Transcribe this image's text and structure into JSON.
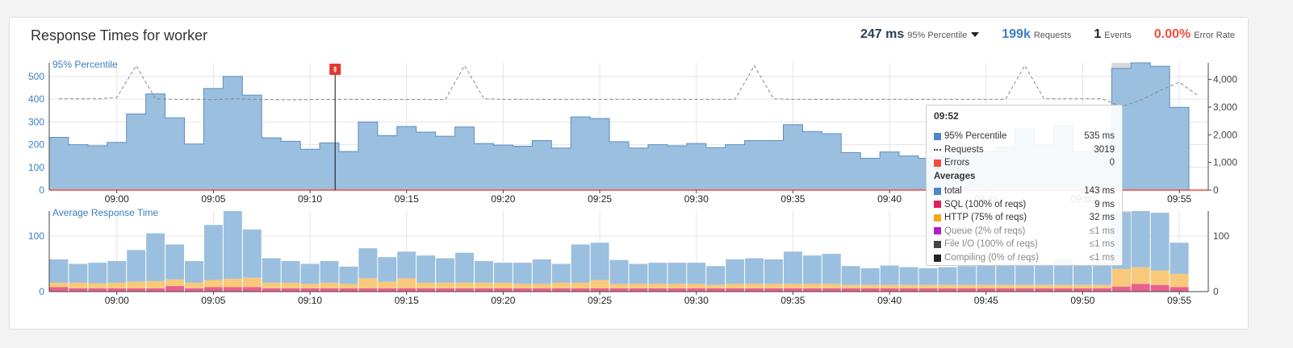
{
  "title": "Response Times for worker",
  "stats": {
    "percentile_value": "247 ms",
    "percentile_label": "95% Percentile",
    "requests_value": "199k",
    "requests_label": "Requests",
    "events_value": "1",
    "events_label": "Events",
    "error_value": "0.00%",
    "error_label": "Error Rate"
  },
  "colors": {
    "percentile": "#3a7fc1",
    "requests": "#3a7fc1",
    "error": "#f04e3e",
    "bar_fill": "#9bbfdf",
    "bar_stroke": "#5b8fc4",
    "sql": "#e8608e",
    "http": "#f8c97a",
    "queue": "#b94fc7",
    "fileio": "#444444",
    "compiling": "#222222"
  },
  "tooltip": {
    "time": "09:52",
    "rows": [
      {
        "name": "95% Percentile",
        "value": "535 ms",
        "color": "#4b86c5",
        "kind": "swatch"
      },
      {
        "name": "Requests",
        "value": "3019",
        "color": "#444444",
        "kind": "dash"
      },
      {
        "name": "Errors",
        "value": "0",
        "color": "#f04e3e",
        "kind": "swatch"
      }
    ],
    "averages_label": "Averages",
    "averages": [
      {
        "name": "total",
        "value": "143 ms",
        "color": "#4b86c5",
        "dim": false
      },
      {
        "name": "SQL (100% of reqs)",
        "value": "9 ms",
        "color": "#e01e5a",
        "dim": false
      },
      {
        "name": "HTTP (75% of reqs)",
        "value": "32 ms",
        "color": "#f5a623",
        "dim": false
      },
      {
        "name": "Queue (2% of reqs)",
        "value": "≤1 ms",
        "color": "#b01ec7",
        "dim": true
      },
      {
        "name": "File I/O (100% of reqs)",
        "value": "≤1 ms",
        "color": "#444444",
        "dim": true
      },
      {
        "name": "Compiling (0% of reqs)",
        "value": "≤1 ms",
        "color": "#222222",
        "dim": true
      }
    ]
  },
  "deploy_marker": {
    "label": "⇞",
    "time": "09:11"
  },
  "chart_data": [
    {
      "type": "bar",
      "series_label": "95% Percentile",
      "categories": [
        "08:57",
        "08:58",
        "08:59",
        "09:00",
        "09:01",
        "09:02",
        "09:03",
        "09:04",
        "09:05",
        "09:06",
        "09:07",
        "09:08",
        "09:09",
        "09:10",
        "09:11",
        "09:12",
        "09:13",
        "09:14",
        "09:15",
        "09:16",
        "09:17",
        "09:18",
        "09:19",
        "09:20",
        "09:21",
        "09:22",
        "09:23",
        "09:24",
        "09:25",
        "09:26",
        "09:27",
        "09:28",
        "09:29",
        "09:30",
        "09:31",
        "09:32",
        "09:33",
        "09:34",
        "09:35",
        "09:36",
        "09:37",
        "09:38",
        "09:39",
        "09:40",
        "09:41",
        "09:42",
        "09:43",
        "09:44",
        "09:45",
        "09:46",
        "09:47",
        "09:48",
        "09:49",
        "09:50",
        "09:51",
        "09:52",
        "09:53",
        "09:54",
        "09:55",
        "09:56"
      ],
      "series": [
        {
          "name": "95% Percentile",
          "axis": "left",
          "values": [
            232,
            200,
            195,
            210,
            335,
            423,
            318,
            203,
            447,
            500,
            418,
            230,
            215,
            180,
            208,
            170,
            300,
            240,
            280,
            255,
            237,
            278,
            205,
            198,
            193,
            218,
            185,
            322,
            315,
            213,
            185,
            200,
            195,
            205,
            187,
            200,
            218,
            218,
            288,
            258,
            248,
            165,
            140,
            168,
            150,
            140,
            150,
            165,
            170,
            190,
            270,
            200,
            285,
            170,
            190,
            535,
            560,
            545,
            364,
            0
          ]
        },
        {
          "name": "Requests",
          "axis": "right",
          "values": [
            3300,
            3300,
            3300,
            3350,
            4500,
            3300,
            3280,
            3280,
            3270,
            3300,
            3280,
            3270,
            3260,
            3270,
            3280,
            3280,
            3280,
            3270,
            3270,
            3270,
            3270,
            4500,
            3300,
            3280,
            3280,
            3280,
            3280,
            3280,
            3280,
            3280,
            3280,
            3280,
            3280,
            3280,
            3280,
            3280,
            4500,
            3300,
            3280,
            3280,
            3280,
            3280,
            3280,
            3280,
            3280,
            3280,
            3280,
            3280,
            3280,
            3280,
            4500,
            3300,
            3300,
            3300,
            3300,
            3019,
            3250,
            3600,
            3900,
            3400
          ]
        }
      ],
      "ylim_left": [
        0,
        560
      ],
      "y_ticks_left": [
        0,
        100,
        200,
        300,
        400,
        500
      ],
      "ylim_right": [
        0,
        4600
      ],
      "y_ticks_right": [
        "0",
        "1,000",
        "2,000",
        "3,000",
        "4,000"
      ],
      "x_ticks": [
        "09:00",
        "09:05",
        "09:10",
        "09:15",
        "09:20",
        "09:25",
        "09:30",
        "09:35",
        "09:40",
        "09:45",
        "09:50",
        "09:55"
      ]
    },
    {
      "type": "bar",
      "series_label": "Average Response Time",
      "stacked": true,
      "categories_ref": "same as first chart",
      "series": [
        {
          "name": "total",
          "values": [
            58,
            50,
            52,
            55,
            75,
            105,
            85,
            55,
            120,
            145,
            112,
            60,
            55,
            50,
            55,
            45,
            78,
            62,
            72,
            65,
            60,
            70,
            55,
            52,
            52,
            58,
            50,
            85,
            88,
            57,
            50,
            52,
            52,
            52,
            46,
            58,
            60,
            58,
            72,
            65,
            68,
            46,
            42,
            47,
            44,
            42,
            44,
            46,
            48,
            52,
            58,
            50,
            60,
            48,
            52,
            143,
            145,
            142,
            88,
            0
          ]
        },
        {
          "name": "SQL",
          "values": [
            8,
            6,
            6,
            6,
            6,
            6,
            10,
            6,
            8,
            8,
            8,
            6,
            6,
            6,
            6,
            6,
            6,
            6,
            6,
            6,
            6,
            6,
            6,
            6,
            6,
            6,
            6,
            6,
            6,
            6,
            6,
            6,
            6,
            6,
            6,
            6,
            6,
            6,
            6,
            6,
            6,
            6,
            6,
            6,
            6,
            6,
            6,
            6,
            6,
            6,
            6,
            6,
            6,
            6,
            6,
            9,
            14,
            12,
            8,
            0
          ]
        },
        {
          "name": "HTTP",
          "values": [
            8,
            10,
            9,
            10,
            12,
            13,
            12,
            10,
            13,
            15,
            17,
            10,
            10,
            8,
            10,
            8,
            18,
            12,
            18,
            10,
            10,
            10,
            10,
            10,
            8,
            8,
            10,
            10,
            15,
            8,
            8,
            8,
            8,
            8,
            6,
            8,
            8,
            8,
            8,
            8,
            8,
            6,
            6,
            6,
            6,
            6,
            6,
            6,
            6,
            6,
            6,
            6,
            6,
            6,
            6,
            32,
            30,
            26,
            24,
            0
          ]
        }
      ],
      "ylim": [
        0,
        145
      ],
      "y_ticks": [
        0,
        100
      ],
      "x_ticks": [
        "09:00",
        "09:05",
        "09:10",
        "09:15",
        "09:20",
        "09:25",
        "09:30",
        "09:35",
        "09:40",
        "09:45",
        "09:50",
        "09:55"
      ]
    }
  ]
}
